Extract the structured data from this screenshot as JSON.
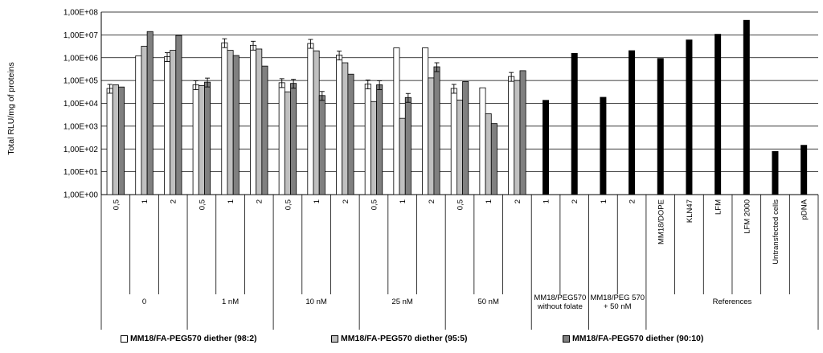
{
  "chart_data": {
    "type": "bar",
    "ylabel": "Total RLU/mg of proteins",
    "yscale": "log",
    "ylim": [
      1,
      100000000
    ],
    "yticks": [
      "1,00E+00",
      "1,00E+01",
      "1,00E+02",
      "1,00E+03",
      "1,00E+04",
      "1,00E+05",
      "1,00E+06",
      "1,00E+07",
      "1,00E+08"
    ],
    "grid": true,
    "legend_position": "bottom",
    "series": [
      {
        "name": "MM18/FA-PEG570  diether (98:2)",
        "color": "#ffffff"
      },
      {
        "name": "MM18/FA-PEG570  diether (95:5)",
        "color": "#c0c0c0"
      },
      {
        "name": "MM18/FA-PEG570  diether (90:10)",
        "color": "#808080"
      }
    ],
    "groups": [
      {
        "label": "0",
        "slots": [
          {
            "label": "0,5",
            "values": [
              45000,
              65000,
              52000
            ],
            "errors": [
              true,
              false,
              false
            ]
          },
          {
            "label": "1",
            "values": [
              1200000,
              3200000,
              14000000
            ],
            "errors": [
              false,
              false,
              false
            ]
          },
          {
            "label": "2",
            "values": [
              1100000,
              2100000,
              9500000
            ],
            "errors": [
              true,
              false,
              false
            ]
          }
        ]
      },
      {
        "label": "1 nM",
        "slots": [
          {
            "label": "0,5",
            "values": [
              65000,
              60000,
              85000
            ],
            "errors": [
              true,
              false,
              true
            ]
          },
          {
            "label": "1",
            "values": [
              4500000,
              2100000,
              1250000
            ],
            "errors": [
              true,
              false,
              false
            ]
          },
          {
            "label": "2",
            "values": [
              3500000,
              2400000,
              430000
            ],
            "errors": [
              true,
              false,
              false
            ]
          }
        ]
      },
      {
        "label": "10 nM",
        "slots": [
          {
            "label": "0,5",
            "values": [
              80000,
              32000,
              75000
            ],
            "errors": [
              true,
              false,
              true
            ]
          },
          {
            "label": "1",
            "values": [
              4200000,
              2000000,
              22000
            ],
            "errors": [
              true,
              false,
              true
            ]
          },
          {
            "label": "2",
            "values": [
              1300000,
              600000,
              190000
            ],
            "errors": [
              true,
              false,
              false
            ]
          }
        ]
      },
      {
        "label": "25 nM",
        "slots": [
          {
            "label": "0,5",
            "values": [
              70000,
              12000,
              65000
            ],
            "errors": [
              true,
              false,
              true
            ]
          },
          {
            "label": "1",
            "values": [
              2700000,
              2200,
              18000
            ],
            "errors": [
              false,
              false,
              true
            ]
          },
          {
            "label": "2",
            "values": [
              2700000,
              130000,
              400000
            ],
            "errors": [
              false,
              false,
              true
            ]
          }
        ]
      },
      {
        "label": "50 nM",
        "slots": [
          {
            "label": "0,5",
            "values": [
              45000,
              14000,
              90000
            ],
            "errors": [
              true,
              false,
              false
            ]
          },
          {
            "label": "1",
            "values": [
              48000,
              3500,
              1300
            ],
            "errors": [
              false,
              false,
              false
            ]
          },
          {
            "label": "2",
            "values": [
              150000,
              100000,
              270000
            ],
            "errors": [
              true,
              false,
              false
            ]
          }
        ]
      },
      {
        "label": "MM18/PEG570\nwithout folate",
        "slots": [
          {
            "label": "1",
            "black": 14000
          },
          {
            "label": "2",
            "black": 1600000
          }
        ]
      },
      {
        "label": "MM18/PEG 570\n+ 50 nM",
        "slots": [
          {
            "label": "1",
            "black": 19000
          },
          {
            "label": "2",
            "black": 2100000
          }
        ]
      },
      {
        "label": "References",
        "slots": [
          {
            "label": "MM18/DOPE",
            "black": 950000
          },
          {
            "label": "KLN47",
            "black": 6200000
          },
          {
            "label": "LFM",
            "black": 11000000
          },
          {
            "label": "LFM 2000",
            "black": 45000000
          },
          {
            "label": "Untransfected cells",
            "black": 80
          },
          {
            "label": "pDNA",
            "black": 150
          }
        ]
      }
    ]
  }
}
